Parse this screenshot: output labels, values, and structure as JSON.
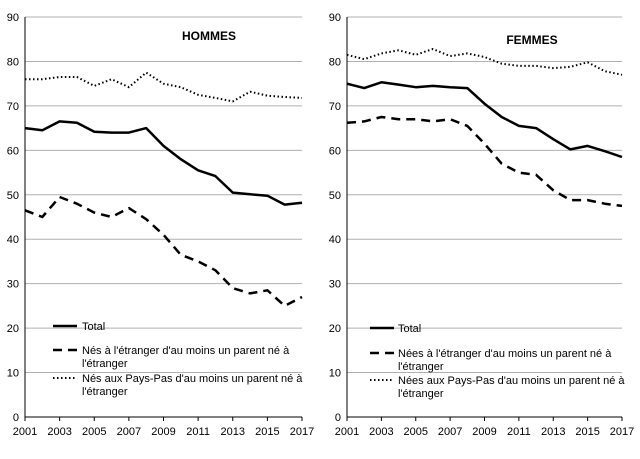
{
  "chart_data": [
    {
      "type": "line",
      "title": "HOMMES",
      "x": [
        2001,
        2002,
        2003,
        2004,
        2005,
        2006,
        2007,
        2008,
        2009,
        2010,
        2011,
        2012,
        2013,
        2014,
        2015,
        2016,
        2017
      ],
      "xticks": [
        "2001",
        "2003",
        "2005",
        "2007",
        "2009",
        "2011",
        "2013",
        "2015",
        "2017"
      ],
      "yticks": [
        "0",
        "10",
        "20",
        "30",
        "40",
        "50",
        "60",
        "70",
        "80",
        "90"
      ],
      "ylim": [
        0,
        90
      ],
      "xlim": [
        2001,
        2017
      ],
      "legend": [
        "Total",
        "Nés à l'étranger d'au moins un parent né à l'étranger",
        "Nés aux Pays-Pas d'au moins un parent né à l'étranger"
      ],
      "series": [
        {
          "name": "Total",
          "style": "solid",
          "values": [
            65,
            64.5,
            66.5,
            66.2,
            64.2,
            64,
            64,
            65,
            61,
            58,
            55.5,
            54.2,
            50.5,
            50.1,
            49.8,
            47.8,
            48.2
          ]
        },
        {
          "name": "Nés à l'étranger d'au moins un parent né à l'étranger",
          "style": "dashed",
          "values": [
            46.5,
            45,
            49.5,
            48,
            46,
            45,
            47,
            44.5,
            41,
            36.5,
            35,
            33,
            29,
            27.8,
            28.5,
            25,
            27
          ]
        },
        {
          "name": "Nés aux Pays-Pas d'au moins un parent né à l'étranger",
          "style": "dotted",
          "values": [
            76,
            76,
            76.5,
            76.5,
            74.5,
            76,
            74.2,
            77.5,
            75,
            74.2,
            72.5,
            71.8,
            71,
            73.2,
            72.3,
            72,
            71.8
          ]
        }
      ]
    },
    {
      "type": "line",
      "title": "FEMMES",
      "x": [
        2001,
        2002,
        2003,
        2004,
        2005,
        2006,
        2007,
        2008,
        2009,
        2010,
        2011,
        2012,
        2013,
        2014,
        2015,
        2016,
        2017
      ],
      "xticks": [
        "2001",
        "2003",
        "2005",
        "2007",
        "2009",
        "2011",
        "2013",
        "2015",
        "2017"
      ],
      "yticks": [
        "0",
        "10",
        "20",
        "30",
        "40",
        "50",
        "60",
        "70",
        "80",
        "90"
      ],
      "ylim": [
        0,
        90
      ],
      "xlim": [
        2001,
        2017
      ],
      "legend": [
        "Total",
        "Nées à l'étranger d'au moins un parent né à l'étranger",
        "Nées aux Pays-Pas d'au moins un parent né à l'étranger"
      ],
      "series": [
        {
          "name": "Total",
          "style": "solid",
          "values": [
            75,
            74,
            75.3,
            74.8,
            74.2,
            74.5,
            74.2,
            74,
            70.5,
            67.5,
            65.5,
            65,
            62.5,
            60.2,
            61,
            59.8,
            58.5
          ]
        },
        {
          "name": "Nées à l'étranger d'au moins un parent né à l'étranger",
          "style": "dashed",
          "values": [
            66.2,
            66.5,
            67.5,
            67,
            67,
            66.5,
            67,
            65.5,
            61.5,
            57,
            55,
            54.5,
            51,
            48.8,
            48.8,
            48,
            47.5
          ]
        },
        {
          "name": "Nées aux Pays-Pas d'au moins un parent né à l'étranger",
          "style": "dotted",
          "values": [
            81.5,
            80.5,
            81.8,
            82.5,
            81.5,
            82.8,
            81.2,
            81.8,
            81,
            79.5,
            79,
            79,
            78.5,
            78.8,
            79.8,
            77.8,
            77
          ]
        }
      ]
    }
  ]
}
